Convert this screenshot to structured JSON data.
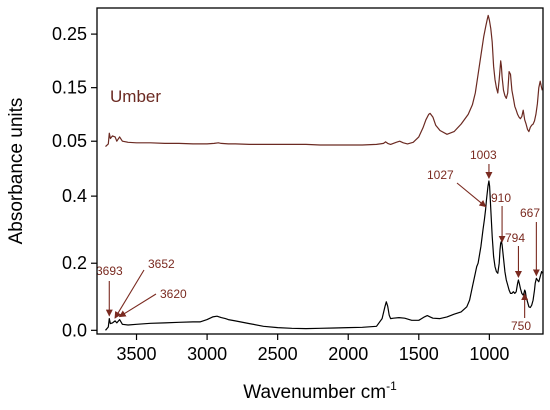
{
  "chart_data": {
    "type": "line",
    "xlabel": "Wavenumber cm",
    "xlabel_sup": "-1",
    "ylabel": "Absorbance units",
    "xlim": [
      3780,
      620
    ],
    "x_reversed": true,
    "x_ticks": [
      3500,
      3000,
      2500,
      2000,
      1500,
      1000
    ],
    "panels": {
      "top": {
        "ylim": [
          0.0,
          0.295
        ],
        "y_ticks": [
          0.05,
          0.15,
          0.25
        ],
        "y_tick_labels": [
          "0.05",
          "0.15",
          "0.25"
        ]
      },
      "bottom": {
        "ylim": [
          -0.005,
          0.46
        ],
        "y_ticks": [
          0.0,
          0.2,
          0.4
        ],
        "y_tick_labels": [
          "0.0",
          "0.2",
          "0.4"
        ]
      }
    },
    "series": [
      {
        "name": "Umber",
        "panel": "top",
        "color": "#6b2a22",
        "x": [
          3720,
          3700,
          3693,
          3685,
          3670,
          3652,
          3640,
          3620,
          3600,
          3560,
          3500,
          3400,
          3300,
          3200,
          3100,
          3000,
          2950,
          2920,
          2900,
          2850,
          2800,
          2700,
          2600,
          2500,
          2400,
          2300,
          2200,
          2100,
          2000,
          1900,
          1800,
          1750,
          1735,
          1720,
          1700,
          1660,
          1635,
          1610,
          1580,
          1540,
          1500,
          1470,
          1450,
          1430,
          1420,
          1400,
          1380,
          1350,
          1300,
          1250,
          1200,
          1150,
          1120,
          1100,
          1080,
          1060,
          1040,
          1025,
          1015,
          1008,
          1000,
          990,
          980,
          970,
          960,
          950,
          940,
          930,
          920,
          915,
          910,
          900,
          890,
          880,
          870,
          860,
          850,
          840,
          830,
          820,
          810,
          800,
          790,
          780,
          770,
          760,
          750,
          740,
          730,
          720,
          710,
          700,
          690,
          680,
          670,
          660,
          650,
          640,
          630,
          625
        ],
        "y": [
          0.04,
          0.045,
          0.065,
          0.055,
          0.06,
          0.058,
          0.05,
          0.058,
          0.05,
          0.048,
          0.047,
          0.047,
          0.046,
          0.046,
          0.045,
          0.045,
          0.046,
          0.047,
          0.046,
          0.045,
          0.045,
          0.044,
          0.044,
          0.044,
          0.044,
          0.044,
          0.043,
          0.043,
          0.043,
          0.043,
          0.044,
          0.046,
          0.049,
          0.046,
          0.044,
          0.048,
          0.05,
          0.047,
          0.045,
          0.048,
          0.058,
          0.075,
          0.09,
          0.1,
          0.102,
          0.095,
          0.08,
          0.07,
          0.063,
          0.068,
          0.082,
          0.1,
          0.118,
          0.14,
          0.175,
          0.21,
          0.245,
          0.265,
          0.278,
          0.285,
          0.276,
          0.26,
          0.235,
          0.19,
          0.165,
          0.15,
          0.14,
          0.165,
          0.2,
          0.19,
          0.17,
          0.145,
          0.135,
          0.13,
          0.14,
          0.18,
          0.175,
          0.145,
          0.13,
          0.115,
          0.108,
          0.1,
          0.095,
          0.092,
          0.096,
          0.108,
          0.09,
          0.082,
          0.072,
          0.068,
          0.076,
          0.08,
          0.082,
          0.088,
          0.1,
          0.12,
          0.15,
          0.162,
          0.15,
          0.145
        ]
      },
      {
        "name": "",
        "panel": "bottom",
        "color": "#000000",
        "x": [
          3720,
          3700,
          3693,
          3685,
          3670,
          3652,
          3640,
          3620,
          3600,
          3560,
          3500,
          3400,
          3300,
          3200,
          3100,
          3050,
          3000,
          2960,
          2930,
          2900,
          2870,
          2850,
          2800,
          2700,
          2600,
          2500,
          2400,
          2300,
          2200,
          2100,
          2000,
          1900,
          1800,
          1760,
          1740,
          1730,
          1720,
          1710,
          1700,
          1680,
          1640,
          1600,
          1550,
          1500,
          1480,
          1460,
          1440,
          1420,
          1400,
          1350,
          1300,
          1250,
          1200,
          1160,
          1140,
          1120,
          1100,
          1090,
          1080,
          1060,
          1045,
          1035,
          1027,
          1020,
          1010,
          1003,
          998,
          990,
          980,
          970,
          960,
          950,
          940,
          930,
          925,
          920,
          915,
          910,
          905,
          900,
          890,
          880,
          870,
          860,
          850,
          840,
          830,
          820,
          810,
          800,
          794,
          788,
          780,
          770,
          760,
          755,
          750,
          745,
          740,
          730,
          720,
          710,
          700,
          690,
          680,
          675,
          667,
          660,
          650,
          640,
          630,
          625
        ],
        "y": [
          0.0,
          0.01,
          0.035,
          0.02,
          0.022,
          0.028,
          0.022,
          0.032,
          0.018,
          0.016,
          0.018,
          0.021,
          0.022,
          0.024,
          0.025,
          0.025,
          0.032,
          0.04,
          0.042,
          0.038,
          0.035,
          0.032,
          0.028,
          0.02,
          0.012,
          0.008,
          0.006,
          0.005,
          0.006,
          0.007,
          0.008,
          0.009,
          0.012,
          0.035,
          0.07,
          0.085,
          0.072,
          0.045,
          0.035,
          0.036,
          0.038,
          0.036,
          0.03,
          0.03,
          0.035,
          0.04,
          0.044,
          0.04,
          0.036,
          0.035,
          0.04,
          0.048,
          0.055,
          0.07,
          0.09,
          0.13,
          0.17,
          0.19,
          0.2,
          0.25,
          0.3,
          0.33,
          0.36,
          0.39,
          0.43,
          0.445,
          0.43,
          0.36,
          0.28,
          0.22,
          0.19,
          0.175,
          0.17,
          0.2,
          0.24,
          0.26,
          0.265,
          0.255,
          0.235,
          0.215,
          0.175,
          0.15,
          0.135,
          0.12,
          0.11,
          0.11,
          0.115,
          0.11,
          0.115,
          0.14,
          0.15,
          0.14,
          0.125,
          0.11,
          0.105,
          0.11,
          0.12,
          0.115,
          0.1,
          0.085,
          0.07,
          0.068,
          0.075,
          0.09,
          0.12,
          0.14,
          0.155,
          0.15,
          0.145,
          0.16,
          0.175,
          0.17
        ]
      }
    ],
    "annotations": [
      {
        "text": "3693",
        "x": 3693
      },
      {
        "text": "3652",
        "x": 3652
      },
      {
        "text": "3620",
        "x": 3620
      },
      {
        "text": "1027",
        "x": 1027
      },
      {
        "text": "1003",
        "x": 1003
      },
      {
        "text": "910",
        "x": 910
      },
      {
        "text": "794",
        "x": 794
      },
      {
        "text": "750",
        "x": 750
      },
      {
        "text": "667",
        "x": 667
      }
    ],
    "annotation_color": "#7a2a20"
  }
}
